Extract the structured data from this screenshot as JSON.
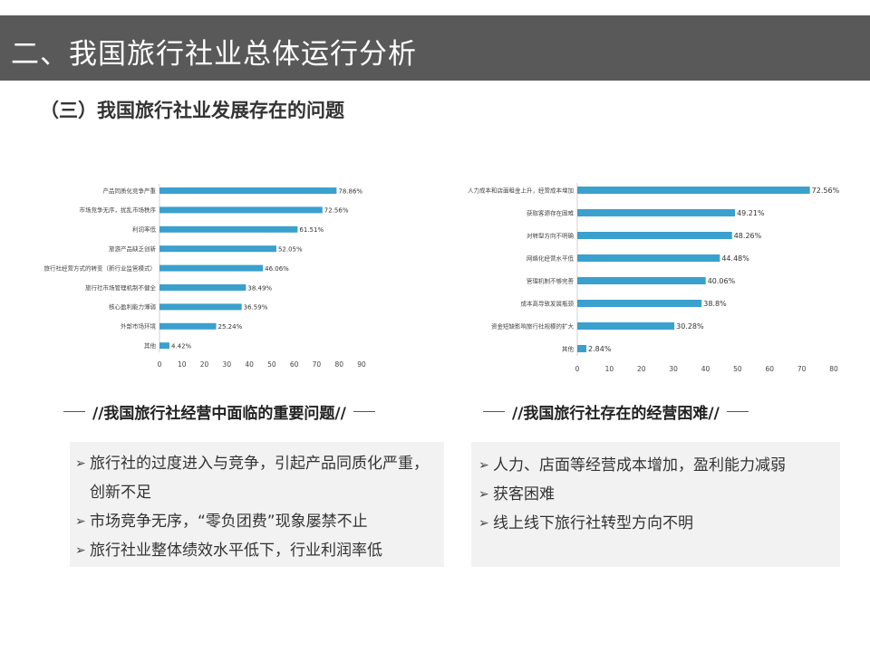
{
  "header": {
    "title": "二、我国旅行社业总体运行分析",
    "subtitle": "（三）我国旅行社业发展存在的问题"
  },
  "colors": {
    "bar": "#3aa0cd",
    "header_bg": "#595959",
    "panel_bg": "#f2f2f2"
  },
  "chart_data": [
    {
      "type": "bar",
      "orientation": "horizontal",
      "title": "//我国旅行社经营中面临的重要问题//",
      "categories": [
        "产品同质化竞争严重",
        "市场竞争无序，扰乱市场秩序",
        "利润率低",
        "旅游产品缺乏创新",
        "旅行社经营方式的转变（新行业监管模式）",
        "旅行社市场管理机制不健全",
        "核心盈利能力薄弱",
        "外部市场环境",
        "其他"
      ],
      "values": [
        78.86,
        72.56,
        61.51,
        52.05,
        46.06,
        38.49,
        36.59,
        25.24,
        4.42
      ],
      "labels": [
        "78.86%",
        "72.56%",
        "61.51%",
        "52.05%",
        "46.06%",
        "38.49%",
        "36.59%",
        "25.24%",
        "4.42%"
      ],
      "xlim": [
        0,
        90
      ],
      "xticks": [
        "0",
        "10",
        "20",
        "30",
        "40",
        "50",
        "60",
        "70",
        "80",
        "90"
      ],
      "xlabel": "",
      "ylabel": ""
    },
    {
      "type": "bar",
      "orientation": "horizontal",
      "title": "//我国旅行社存在的经营困难//",
      "categories": [
        "人力成本和店面租金上升，经营成本增加",
        "获取客源存在困难",
        "对转型方向不明确",
        "网络化经营水平低",
        "管理机制不够完善",
        "成本高导致发展瓶颈",
        "资金短缺影响旅行社规模的扩大",
        "其他"
      ],
      "values": [
        72.56,
        49.21,
        48.26,
        44.48,
        40.06,
        38.8,
        30.28,
        2.84
      ],
      "labels": [
        "72.56%",
        "49.21%",
        "48.26%",
        "44.48%",
        "40.06%",
        "38.8%",
        "30.28%",
        "2.84%"
      ],
      "xlim": [
        0,
        80
      ],
      "xticks": [
        "0",
        "10",
        "20",
        "30",
        "40",
        "50",
        "60",
        "70",
        "80"
      ],
      "xlabel": "",
      "ylabel": ""
    }
  ],
  "left_panel": {
    "caption": "//我国旅行社经营中面临的重要问题//",
    "items": [
      {
        "bullet": "➢",
        "text": "旅行社的过度进入与竞争，引起产品同质化严重，创新不足"
      },
      {
        "bullet": "➢",
        "text": "市场竞争无序，“零负团费”现象屡禁不止"
      },
      {
        "bullet": "➢",
        "text": "旅行社业整体绩效水平低下，行业利润率低"
      }
    ]
  },
  "right_panel": {
    "caption": "//我国旅行社存在的经营困难//",
    "items": [
      {
        "bullet": "➢",
        "text": "人力、店面等经营成本增加，盈利能力减弱"
      },
      {
        "bullet": "➢",
        "text": "获客困难"
      },
      {
        "bullet": "➢",
        "text": "线上线下旅行社转型方向不明"
      }
    ]
  }
}
